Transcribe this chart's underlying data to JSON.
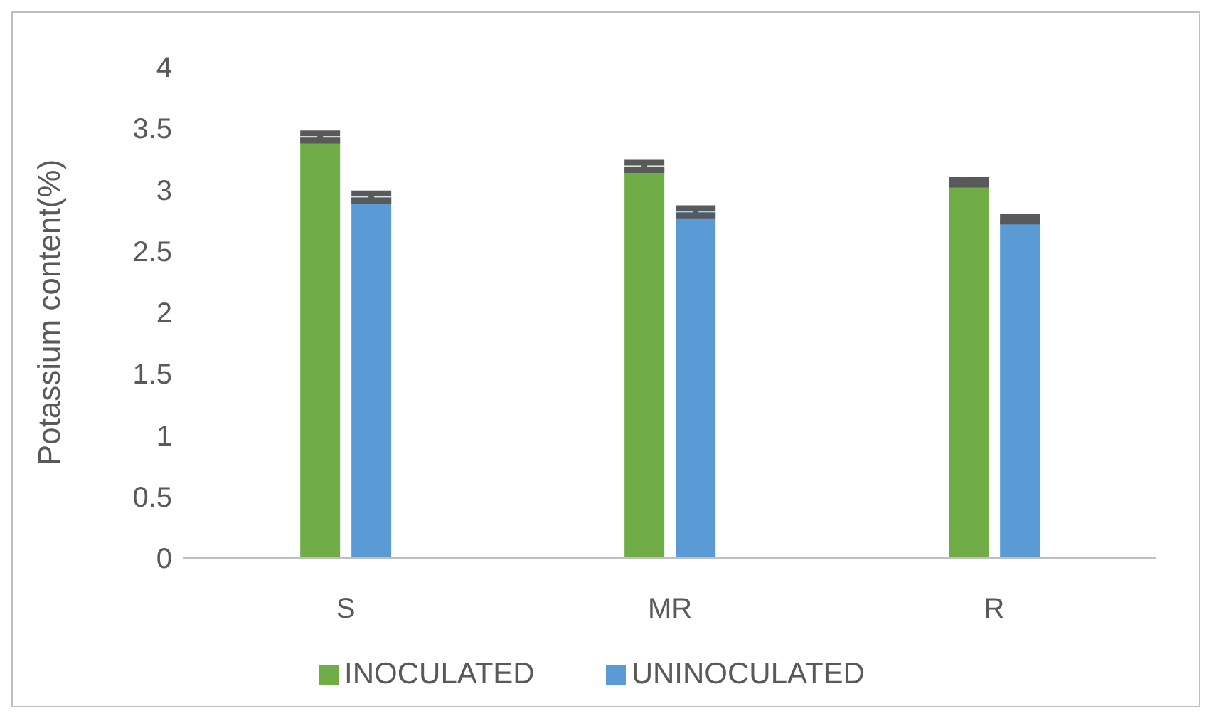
{
  "chart_data": {
    "type": "bar",
    "ylabel": "Potassium content(%)",
    "categories": [
      "S",
      "MR",
      "R"
    ],
    "series": [
      {
        "name": "INOCULATED",
        "color": "#70ad47",
        "values": [
          3.43,
          3.19,
          3.06
        ],
        "errors": [
          0.03,
          0.03,
          0.02
        ]
      },
      {
        "name": "UNINOCULATED",
        "color": "#5b9bd5",
        "values": [
          2.94,
          2.82,
          2.76
        ],
        "errors": [
          0.03,
          0.03,
          0.02
        ]
      }
    ],
    "ylim": [
      0,
      4
    ],
    "yticks": [
      0,
      0.5,
      1,
      1.5,
      2,
      2.5,
      3,
      3.5,
      4
    ],
    "grid": false,
    "legend": "bottom"
  }
}
